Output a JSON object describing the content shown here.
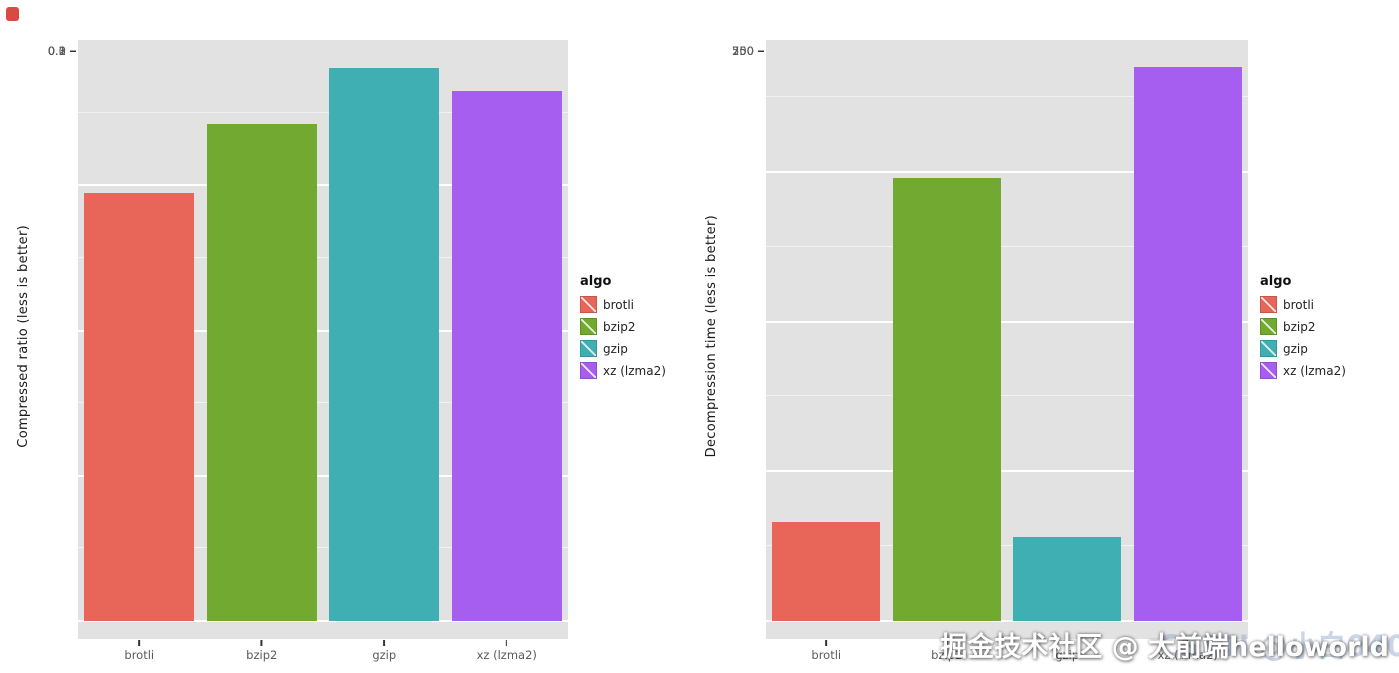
{
  "chart_data": [
    {
      "type": "bar",
      "title": "",
      "xlabel": "",
      "ylabel": "Compressed ratio (less is better)",
      "categories": [
        "brotli",
        "bzip2",
        "gzip",
        "xz (lzma2)"
      ],
      "values": [
        0.295,
        0.342,
        0.381,
        0.365
      ],
      "ylim": [
        0,
        0.4
      ],
      "yticks": [
        {
          "value": 0,
          "label": "0.0"
        },
        {
          "value": 0.1,
          "label": "0.1"
        },
        {
          "value": 0.2,
          "label": "0.2"
        },
        {
          "value": 0.3,
          "label": "0.3"
        }
      ],
      "colors": [
        "#e8655a",
        "#72a931",
        "#3fafb4",
        "#a55ef0"
      ],
      "grid": true,
      "legend_position": "right",
      "legend": {
        "title": "algo",
        "entries": [
          {
            "label": "brotli",
            "color": "#e8655a"
          },
          {
            "label": "bzip2",
            "color": "#72a931"
          },
          {
            "label": "gzip",
            "color": "#3fafb4"
          },
          {
            "label": "xz (lzma2)",
            "color": "#a55ef0"
          }
        ]
      }
    },
    {
      "type": "bar",
      "title": "",
      "xlabel": "",
      "ylabel": "Decompression time (less is better)",
      "categories": [
        "brotli",
        "bzip2",
        "gzip",
        "xz (lzma2)"
      ],
      "values": [
        165,
        740,
        140,
        925
      ],
      "ylim": [
        0,
        970
      ],
      "yticks": [
        {
          "value": 0,
          "label": "0"
        },
        {
          "value": 250,
          "label": "250"
        },
        {
          "value": 500,
          "label": "500"
        },
        {
          "value": 750,
          "label": "750"
        }
      ],
      "colors": [
        "#e8655a",
        "#72a931",
        "#3fafb4",
        "#a55ef0"
      ],
      "grid": true,
      "legend_position": "right",
      "legend": {
        "title": "algo",
        "entries": [
          {
            "label": "brotli",
            "color": "#e8655a"
          },
          {
            "label": "bzip2",
            "color": "#72a931"
          },
          {
            "label": "gzip",
            "color": "#3fafb4"
          },
          {
            "label": "xz (lzma2)",
            "color": "#a55ef0"
          }
        ]
      }
    }
  ],
  "panel_background": "#e2e2e2",
  "gridline_color": "#ffffff",
  "watermark": {
    "primary": "掘金技术社区 @ 大前端helloworld",
    "secondary": "CSDN @小白0402"
  }
}
